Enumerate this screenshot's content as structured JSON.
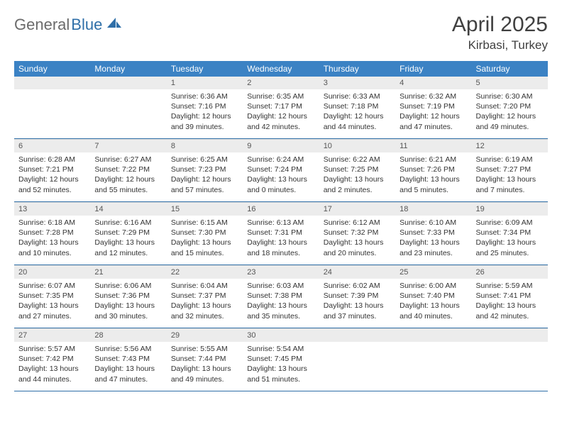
{
  "logo": {
    "text_gray": "General",
    "text_blue": "Blue"
  },
  "title": {
    "month": "April 2025",
    "location": "Kirbasi, Turkey"
  },
  "colors": {
    "header_bg": "#3b82c4",
    "header_text": "#ffffff",
    "daynum_bg": "#ececec",
    "row_divider": "#2f6fa8",
    "logo_gray": "#6b6b6b",
    "logo_blue": "#2f6fa8"
  },
  "weekdays": [
    "Sunday",
    "Monday",
    "Tuesday",
    "Wednesday",
    "Thursday",
    "Friday",
    "Saturday"
  ],
  "weeks": [
    [
      null,
      null,
      {
        "n": "1",
        "sr": "Sunrise: 6:36 AM",
        "ss": "Sunset: 7:16 PM",
        "d1": "Daylight: 12 hours",
        "d2": "and 39 minutes."
      },
      {
        "n": "2",
        "sr": "Sunrise: 6:35 AM",
        "ss": "Sunset: 7:17 PM",
        "d1": "Daylight: 12 hours",
        "d2": "and 42 minutes."
      },
      {
        "n": "3",
        "sr": "Sunrise: 6:33 AM",
        "ss": "Sunset: 7:18 PM",
        "d1": "Daylight: 12 hours",
        "d2": "and 44 minutes."
      },
      {
        "n": "4",
        "sr": "Sunrise: 6:32 AM",
        "ss": "Sunset: 7:19 PM",
        "d1": "Daylight: 12 hours",
        "d2": "and 47 minutes."
      },
      {
        "n": "5",
        "sr": "Sunrise: 6:30 AM",
        "ss": "Sunset: 7:20 PM",
        "d1": "Daylight: 12 hours",
        "d2": "and 49 minutes."
      }
    ],
    [
      {
        "n": "6",
        "sr": "Sunrise: 6:28 AM",
        "ss": "Sunset: 7:21 PM",
        "d1": "Daylight: 12 hours",
        "d2": "and 52 minutes."
      },
      {
        "n": "7",
        "sr": "Sunrise: 6:27 AM",
        "ss": "Sunset: 7:22 PM",
        "d1": "Daylight: 12 hours",
        "d2": "and 55 minutes."
      },
      {
        "n": "8",
        "sr": "Sunrise: 6:25 AM",
        "ss": "Sunset: 7:23 PM",
        "d1": "Daylight: 12 hours",
        "d2": "and 57 minutes."
      },
      {
        "n": "9",
        "sr": "Sunrise: 6:24 AM",
        "ss": "Sunset: 7:24 PM",
        "d1": "Daylight: 13 hours",
        "d2": "and 0 minutes."
      },
      {
        "n": "10",
        "sr": "Sunrise: 6:22 AM",
        "ss": "Sunset: 7:25 PM",
        "d1": "Daylight: 13 hours",
        "d2": "and 2 minutes."
      },
      {
        "n": "11",
        "sr": "Sunrise: 6:21 AM",
        "ss": "Sunset: 7:26 PM",
        "d1": "Daylight: 13 hours",
        "d2": "and 5 minutes."
      },
      {
        "n": "12",
        "sr": "Sunrise: 6:19 AM",
        "ss": "Sunset: 7:27 PM",
        "d1": "Daylight: 13 hours",
        "d2": "and 7 minutes."
      }
    ],
    [
      {
        "n": "13",
        "sr": "Sunrise: 6:18 AM",
        "ss": "Sunset: 7:28 PM",
        "d1": "Daylight: 13 hours",
        "d2": "and 10 minutes."
      },
      {
        "n": "14",
        "sr": "Sunrise: 6:16 AM",
        "ss": "Sunset: 7:29 PM",
        "d1": "Daylight: 13 hours",
        "d2": "and 12 minutes."
      },
      {
        "n": "15",
        "sr": "Sunrise: 6:15 AM",
        "ss": "Sunset: 7:30 PM",
        "d1": "Daylight: 13 hours",
        "d2": "and 15 minutes."
      },
      {
        "n": "16",
        "sr": "Sunrise: 6:13 AM",
        "ss": "Sunset: 7:31 PM",
        "d1": "Daylight: 13 hours",
        "d2": "and 18 minutes."
      },
      {
        "n": "17",
        "sr": "Sunrise: 6:12 AM",
        "ss": "Sunset: 7:32 PM",
        "d1": "Daylight: 13 hours",
        "d2": "and 20 minutes."
      },
      {
        "n": "18",
        "sr": "Sunrise: 6:10 AM",
        "ss": "Sunset: 7:33 PM",
        "d1": "Daylight: 13 hours",
        "d2": "and 23 minutes."
      },
      {
        "n": "19",
        "sr": "Sunrise: 6:09 AM",
        "ss": "Sunset: 7:34 PM",
        "d1": "Daylight: 13 hours",
        "d2": "and 25 minutes."
      }
    ],
    [
      {
        "n": "20",
        "sr": "Sunrise: 6:07 AM",
        "ss": "Sunset: 7:35 PM",
        "d1": "Daylight: 13 hours",
        "d2": "and 27 minutes."
      },
      {
        "n": "21",
        "sr": "Sunrise: 6:06 AM",
        "ss": "Sunset: 7:36 PM",
        "d1": "Daylight: 13 hours",
        "d2": "and 30 minutes."
      },
      {
        "n": "22",
        "sr": "Sunrise: 6:04 AM",
        "ss": "Sunset: 7:37 PM",
        "d1": "Daylight: 13 hours",
        "d2": "and 32 minutes."
      },
      {
        "n": "23",
        "sr": "Sunrise: 6:03 AM",
        "ss": "Sunset: 7:38 PM",
        "d1": "Daylight: 13 hours",
        "d2": "and 35 minutes."
      },
      {
        "n": "24",
        "sr": "Sunrise: 6:02 AM",
        "ss": "Sunset: 7:39 PM",
        "d1": "Daylight: 13 hours",
        "d2": "and 37 minutes."
      },
      {
        "n": "25",
        "sr": "Sunrise: 6:00 AM",
        "ss": "Sunset: 7:40 PM",
        "d1": "Daylight: 13 hours",
        "d2": "and 40 minutes."
      },
      {
        "n": "26",
        "sr": "Sunrise: 5:59 AM",
        "ss": "Sunset: 7:41 PM",
        "d1": "Daylight: 13 hours",
        "d2": "and 42 minutes."
      }
    ],
    [
      {
        "n": "27",
        "sr": "Sunrise: 5:57 AM",
        "ss": "Sunset: 7:42 PM",
        "d1": "Daylight: 13 hours",
        "d2": "and 44 minutes."
      },
      {
        "n": "28",
        "sr": "Sunrise: 5:56 AM",
        "ss": "Sunset: 7:43 PM",
        "d1": "Daylight: 13 hours",
        "d2": "and 47 minutes."
      },
      {
        "n": "29",
        "sr": "Sunrise: 5:55 AM",
        "ss": "Sunset: 7:44 PM",
        "d1": "Daylight: 13 hours",
        "d2": "and 49 minutes."
      },
      {
        "n": "30",
        "sr": "Sunrise: 5:54 AM",
        "ss": "Sunset: 7:45 PM",
        "d1": "Daylight: 13 hours",
        "d2": "and 51 minutes."
      },
      null,
      null,
      null
    ]
  ]
}
